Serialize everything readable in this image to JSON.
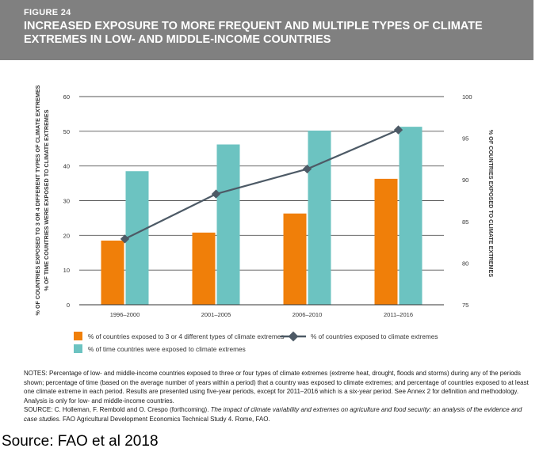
{
  "figure": {
    "label": "FIGURE 24",
    "title": "INCREASED EXPOSURE TO MORE FREQUENT AND MULTIPLE TYPES OF CLIMATE EXTREMES IN LOW- AND MIDDLE-INCOME COUNTRIES"
  },
  "chart_data": {
    "type": "bar",
    "categories": [
      "1996–2000",
      "2001–2005",
      "2006–2010",
      "2011–2016"
    ],
    "series": [
      {
        "name": "% of countries exposed to 3 or 4 different types of climate extremes",
        "kind": "bar",
        "axis": "left",
        "color": "#f07f09",
        "values": [
          18.5,
          20.8,
          26.3,
          36.3
        ]
      },
      {
        "name": "% of time countries were exposed to climate extremes",
        "kind": "bar",
        "axis": "left",
        "color": "#6cc3c1",
        "values": [
          38.5,
          46.2,
          50.2,
          51.3
        ]
      },
      {
        "name": "% of countries exposed to climate extremes",
        "kind": "line",
        "axis": "right",
        "color": "#4d5a66",
        "values": [
          82.9,
          88.3,
          91.3,
          96.0
        ]
      }
    ],
    "left_axis": {
      "labels": [
        "% OF COUNTRIES EXPOSED TO 3 OR 4 DIFFERENT TYPES OF CLIMATE EXTREMES",
        "% OF TIME COUNTRIES WERE EXPOSED TO CLIMATE EXTREMES"
      ],
      "range": [
        0,
        60
      ],
      "ticks": [
        0,
        10,
        20,
        30,
        40,
        50,
        60
      ]
    },
    "right_axis": {
      "label": "% OF COUNTRIES EXPOSED TO CLIMATE EXTREMES",
      "range": [
        75,
        100
      ],
      "ticks": [
        75,
        80,
        85,
        90,
        95,
        100
      ]
    },
    "grid": true,
    "legend_position": "bottom"
  },
  "notes": {
    "notes_label": "NOTES:",
    "notes_text": "Percentage of low- and middle-income countries exposed to three or four types of climate extremes (extreme heat, drought, floods and storms) during any of the periods shown; percentage of time (based on the average number of years within a period) that a country was exposed to climate extremes; and percentage of countries exposed to at least one climate extreme in each period. Results are presented using five-year periods, except for 2011–2016 which is a six-year period. See Annex 2 for definition and methodology. Analysis is only for low- and middle-income countries.",
    "source_label": "SOURCE:",
    "source_authors": "C. Holleman, F. Rembold and O. Crespo (forthcoming).",
    "source_title": "The impact of climate variability and extremes on agriculture and food security: an analysis of the evidence and case studies.",
    "source_rest": "FAO Agricultural Development Economics Technical Study 4. Rome, FAO."
  },
  "footer": {
    "source": "Source: FAO et al 2018"
  }
}
